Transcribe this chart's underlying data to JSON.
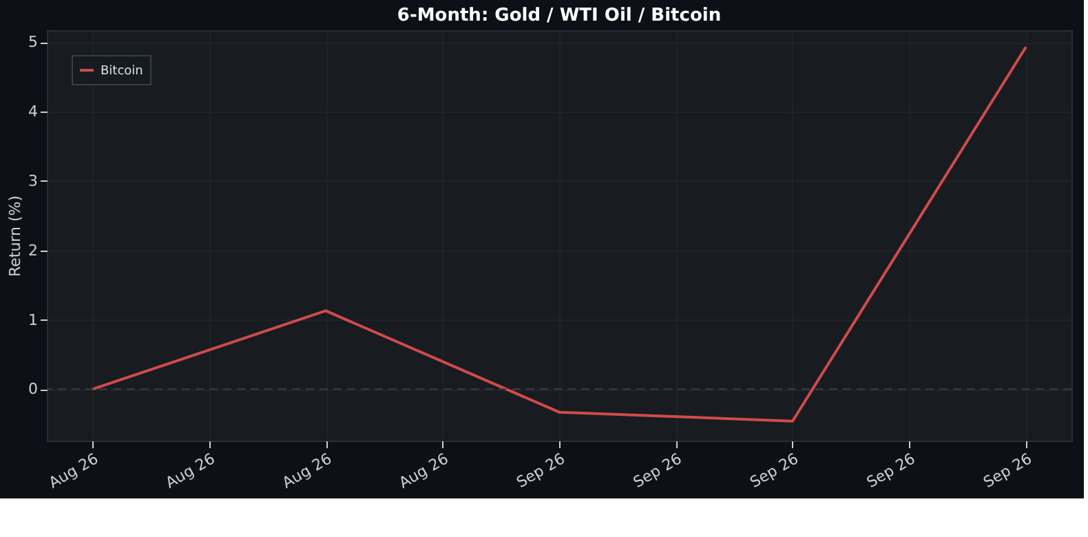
{
  "chart_data": {
    "type": "line",
    "title": "6-Month: Gold / WTI Oil / Bitcoin",
    "ylabel": "Return (%)",
    "categories": [
      "Aug 26",
      "Aug 26",
      "Aug 26",
      "Aug 26",
      "Sep 26",
      "Sep 26",
      "Sep 26",
      "Sep 26",
      "Sep 26"
    ],
    "series": [
      {
        "name": "Bitcoin",
        "color": "#d04b4b",
        "values": [
          0,
          null,
          1.13,
          null,
          -0.33,
          null,
          -0.46,
          null,
          4.93
        ]
      }
    ],
    "ylim": [
      -0.74,
      5.17
    ],
    "yticks": [
      0,
      1,
      2,
      3,
      4,
      5
    ],
    "ref_lines": [
      {
        "axis": "y",
        "value": 0,
        "color": "#3a3f47",
        "line_style": "dashed"
      }
    ],
    "grid": true,
    "legend": "top left",
    "marker": "none",
    "line_style": "solid"
  }
}
